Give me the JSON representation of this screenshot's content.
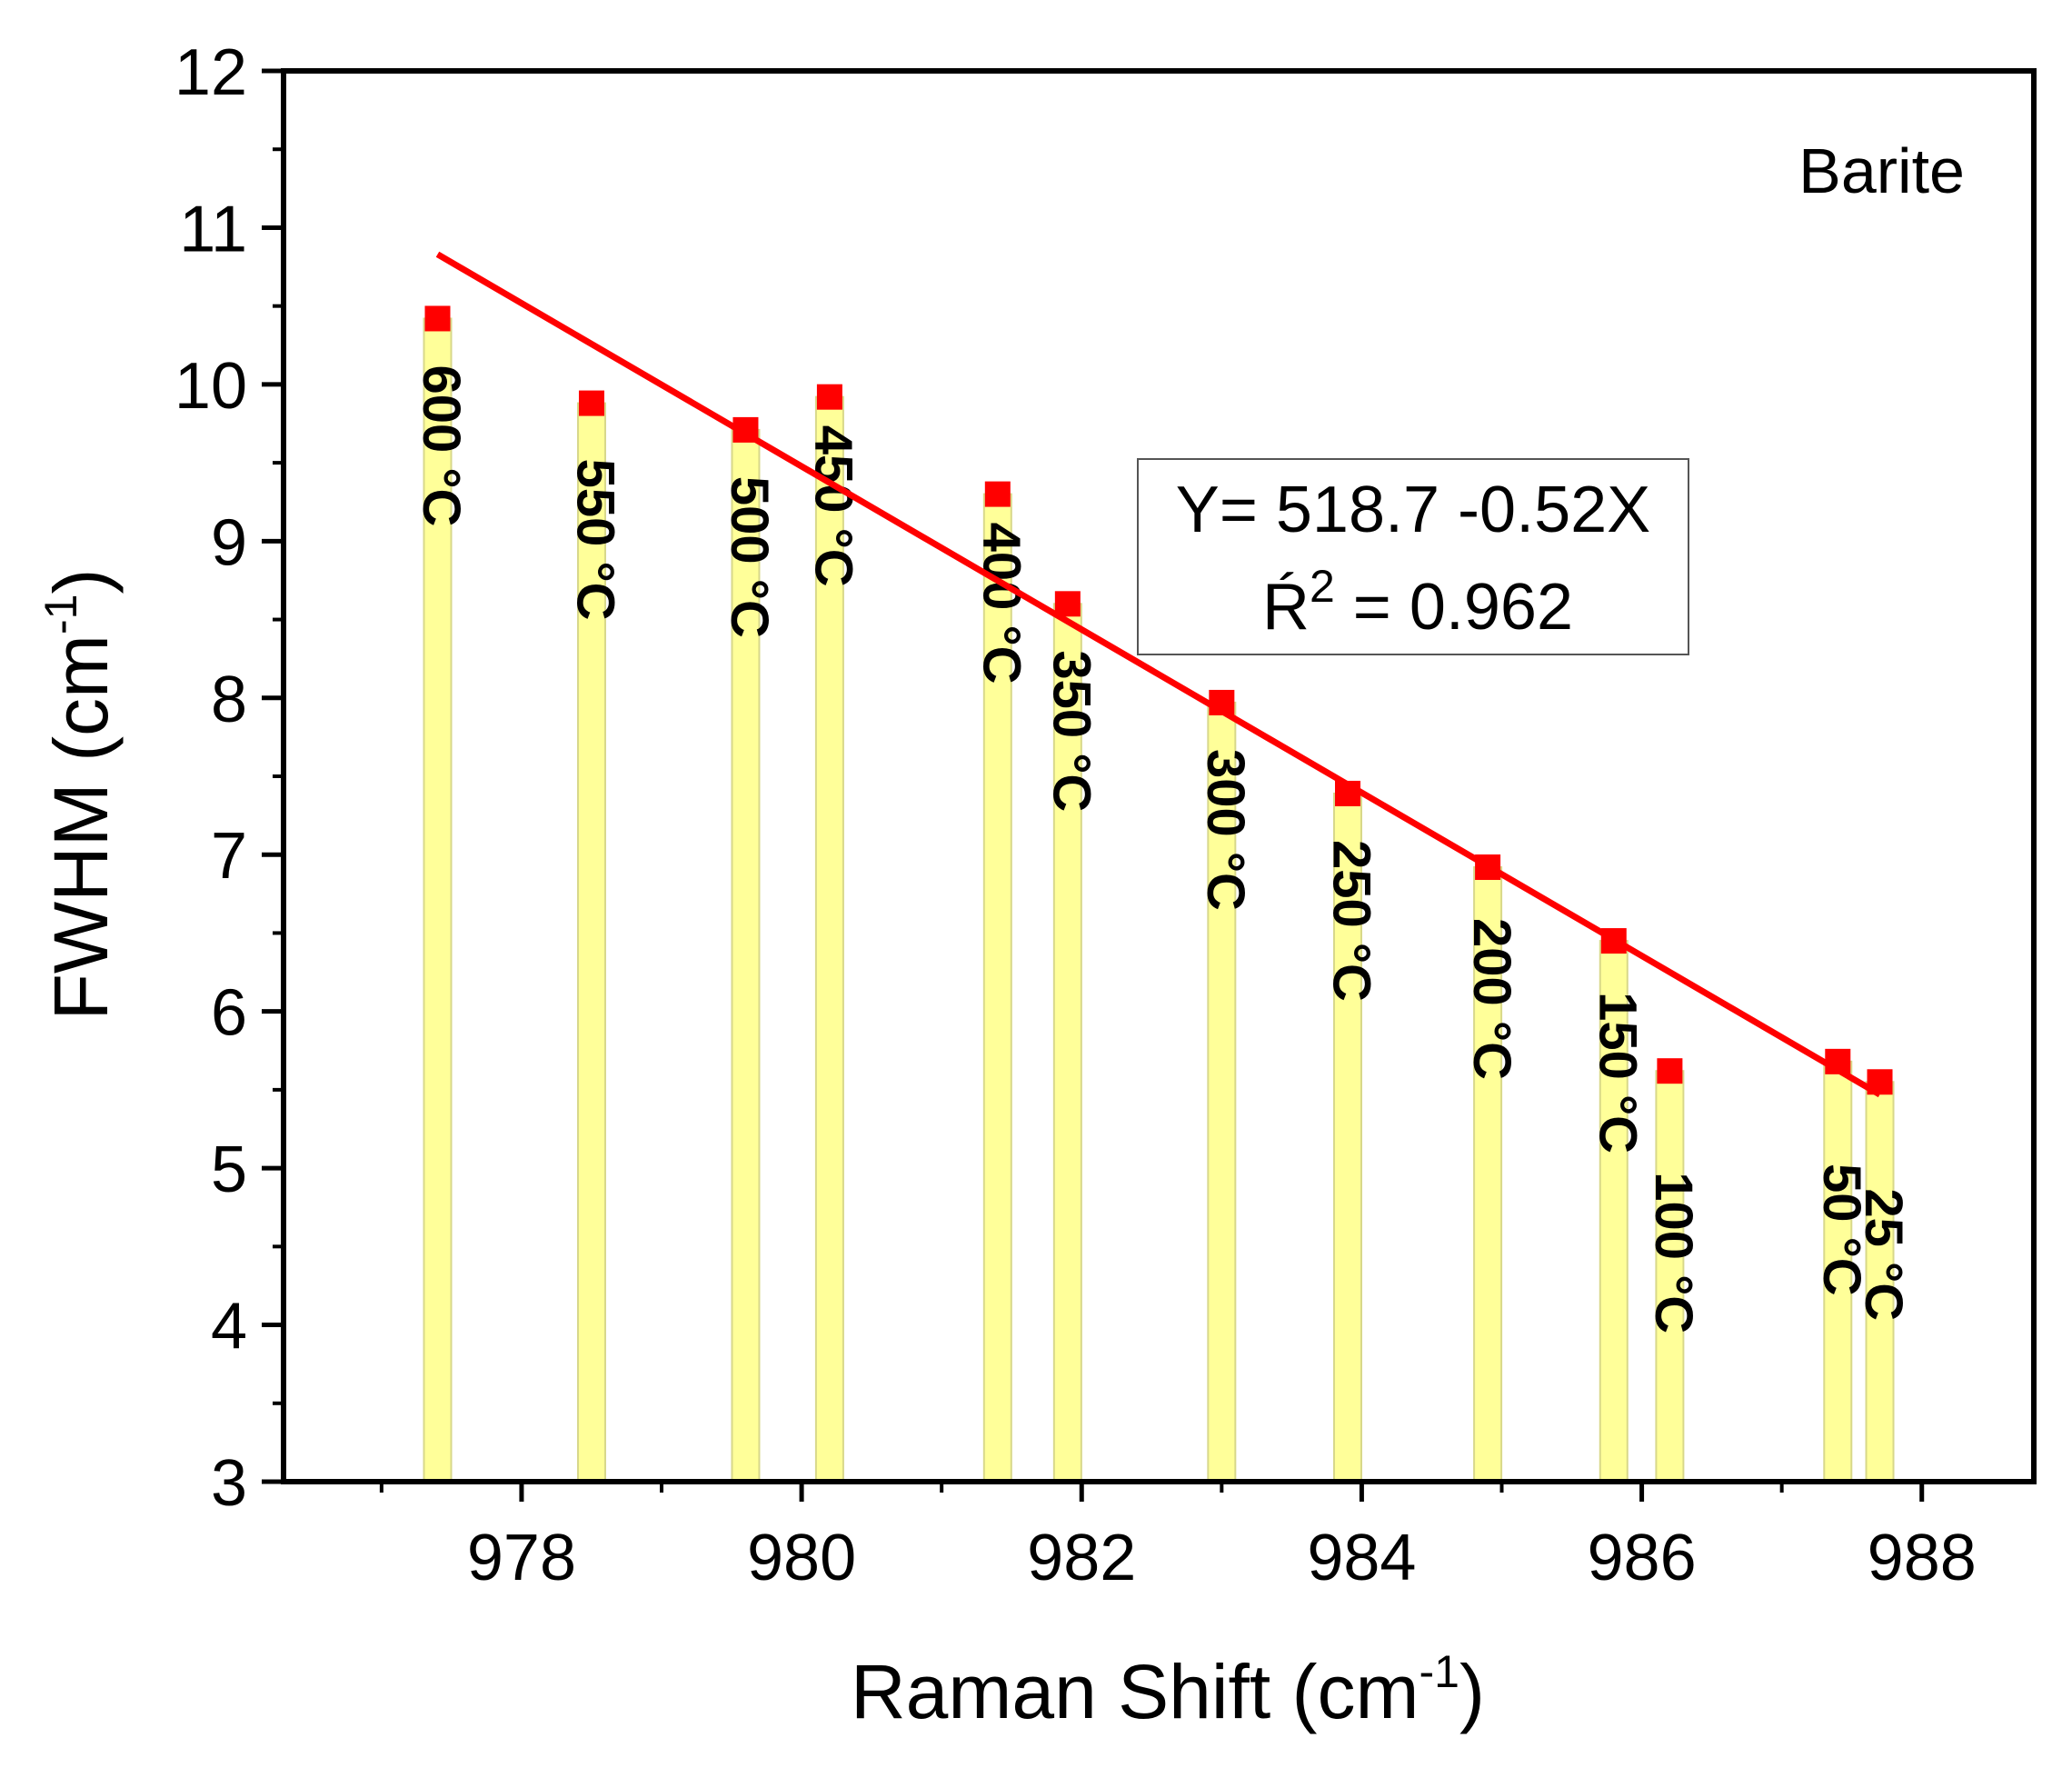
{
  "chart_data": {
    "type": "bar",
    "title": "",
    "legend_label": "Barite",
    "legend_position": "top-right",
    "xlabel": "Raman Shift (cm",
    "xlabel_sup": "-1",
    "xlabel_end": ")",
    "ylabel": "FWHM (cm",
    "ylabel_sup": "-1",
    "ylabel_end": ")",
    "xlim": [
      976.3,
      988.8
    ],
    "ylim": [
      3,
      12
    ],
    "xticks": [
      978,
      980,
      982,
      984,
      986,
      988
    ],
    "xtick_labels": [
      "978",
      "980",
      "982",
      "984",
      "986",
      "988"
    ],
    "yticks": [
      3,
      4,
      5,
      6,
      7,
      8,
      9,
      10,
      11,
      12
    ],
    "ytick_labels": [
      "3",
      "4",
      "5",
      "6",
      "7",
      "8",
      "9",
      "10",
      "11",
      "12"
    ],
    "bar_color": "#ffff99",
    "bar_edge_color": "#d8d88a",
    "marker_color": "#ff0000",
    "line_color": "#ff0000",
    "points": [
      {
        "x": 977.4,
        "y": 10.42,
        "label": "600 °C"
      },
      {
        "x": 978.5,
        "y": 9.88,
        "label": "550 °C"
      },
      {
        "x": 979.6,
        "y": 9.71,
        "label": "500 °C"
      },
      {
        "x": 980.2,
        "y": 9.92,
        "label": "450 °C"
      },
      {
        "x": 981.4,
        "y": 9.3,
        "label": "400 °C"
      },
      {
        "x": 981.9,
        "y": 8.6,
        "label": "350 °C"
      },
      {
        "x": 983.0,
        "y": 7.97,
        "label": "300 °C"
      },
      {
        "x": 983.9,
        "y": 7.39,
        "label": "250 °C"
      },
      {
        "x": 984.9,
        "y": 6.92,
        "label": "200 °C"
      },
      {
        "x": 985.8,
        "y": 6.45,
        "label": "150 °C"
      },
      {
        "x": 986.2,
        "y": 5.62,
        "label": "100 °C"
      },
      {
        "x": 987.4,
        "y": 5.68,
        "label": "50 °C"
      },
      {
        "x": 987.7,
        "y": 5.55,
        "label": "25 °C"
      }
    ],
    "fit_line": {
      "x": [
        977.4,
        987.7
      ],
      "y": [
        10.83,
        5.47
      ]
    },
    "fit_equation": "Y= 518.7 -0.52X",
    "fit_r2_prefix": "Ŕ",
    "fit_r2_sup": "2",
    "fit_r2_value": " = 0.962"
  }
}
